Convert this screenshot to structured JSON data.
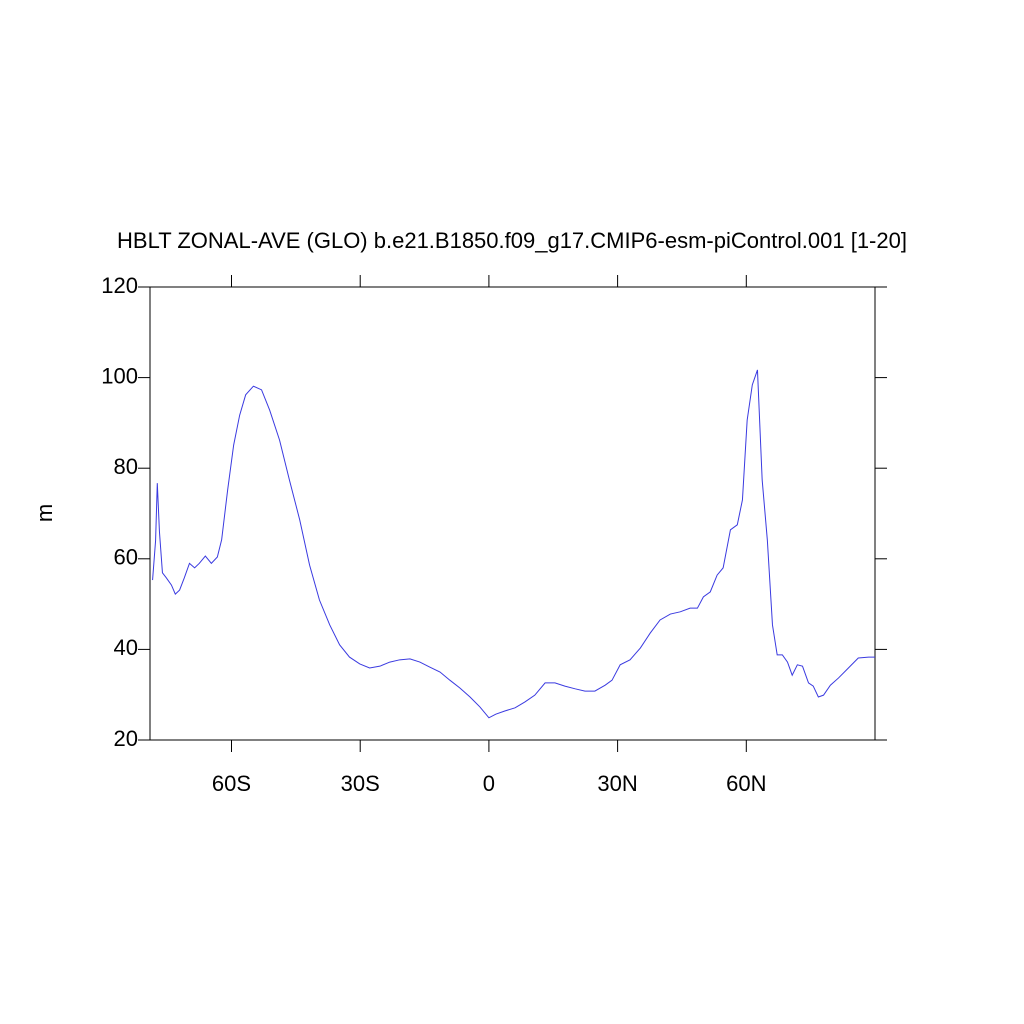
{
  "chart_data": {
    "type": "line",
    "title": "HBLT ZONAL-AVE (GLO) b.e21.B1850.f09_g17.CMIP6-esm-piControl.001 [1-20]",
    "y_label": "m",
    "xlim": [
      -79,
      90
    ],
    "ylim": [
      20,
      120
    ],
    "xticks": [
      {
        "value": -60,
        "label": "60S"
      },
      {
        "value": -30,
        "label": "30S"
      },
      0,
      {
        "value": 30,
        "label": "30N"
      },
      {
        "value": 60,
        "label": "60N"
      }
    ],
    "yticks": [
      20,
      40,
      60,
      80,
      100,
      120
    ],
    "x": [
      -78.4,
      -77.7,
      -77.3,
      -76.8,
      -76.1,
      -75.2,
      -74,
      -73.1,
      -72.1,
      -71,
      -69.8,
      -68.6,
      -67.5,
      -66.1,
      -64.7,
      -63.3,
      -62.3,
      -60.9,
      -59.5,
      -58.1,
      -56.7,
      -54.9,
      -53,
      -51.1,
      -48.8,
      -46.5,
      -44.1,
      -41.8,
      -39.5,
      -37.1,
      -34.8,
      -32.5,
      -30.1,
      -27.8,
      -25.4,
      -23.1,
      -20.8,
      -18.4,
      -16.1,
      -13.8,
      -11.4,
      -9.1,
      -6.8,
      -4.4,
      -2.1,
      0,
      1.6,
      3.7,
      6.1,
      8.4,
      10.7,
      13.1,
      15.4,
      17.7,
      20.1,
      22.4,
      24.7,
      27.1,
      28.7,
      30.6,
      32.9,
      35.3,
      37.6,
      39.9,
      42.3,
      44.6,
      46.9,
      48.6,
      50,
      51.6,
      53.2,
      54.6,
      56.3,
      57.9,
      59.1,
      60.2,
      61.4,
      62.6,
      63.7,
      64.9,
      66.1,
      67.2,
      68.4,
      69.6,
      70.7,
      71.9,
      73.1,
      74.5,
      75.6,
      76.8,
      78,
      79.6,
      81.5,
      83.8,
      86.1,
      88.5,
      90
    ],
    "series": [
      {
        "name": "HBLT",
        "color": "#3a3ae0",
        "values": [
          55.3,
          64,
          76.7,
          66,
          56.9,
          55.8,
          54.2,
          52.2,
          53.1,
          55.8,
          59,
          58,
          59,
          60.6,
          59,
          60.4,
          64.2,
          75.2,
          85.1,
          91.7,
          96.2,
          98.1,
          97.3,
          92.8,
          86.2,
          77.4,
          68.6,
          58.6,
          50.9,
          45.4,
          41,
          38.3,
          36.8,
          35.9,
          36.3,
          37.2,
          37.7,
          37.9,
          37.2,
          36.1,
          35,
          33.2,
          31.5,
          29.5,
          27.3,
          24.9,
          25.7,
          26.4,
          27.1,
          28.4,
          29.9,
          32.6,
          32.6,
          31.9,
          31.3,
          30.8,
          30.8,
          32.1,
          33.2,
          36.6,
          37.7,
          40.3,
          43.6,
          46.5,
          47.8,
          48.3,
          49.1,
          49.1,
          51.6,
          52.7,
          56.4,
          58,
          66.4,
          67.5,
          73,
          90.6,
          98.4,
          101.7,
          77.4,
          64.2,
          45.4,
          38.8,
          38.8,
          37.2,
          34.3,
          36.6,
          36.3,
          32.6,
          31.9,
          29.5,
          29.9,
          32.1,
          33.7,
          35.9,
          38.1,
          38.3,
          38.3
        ]
      }
    ]
  }
}
